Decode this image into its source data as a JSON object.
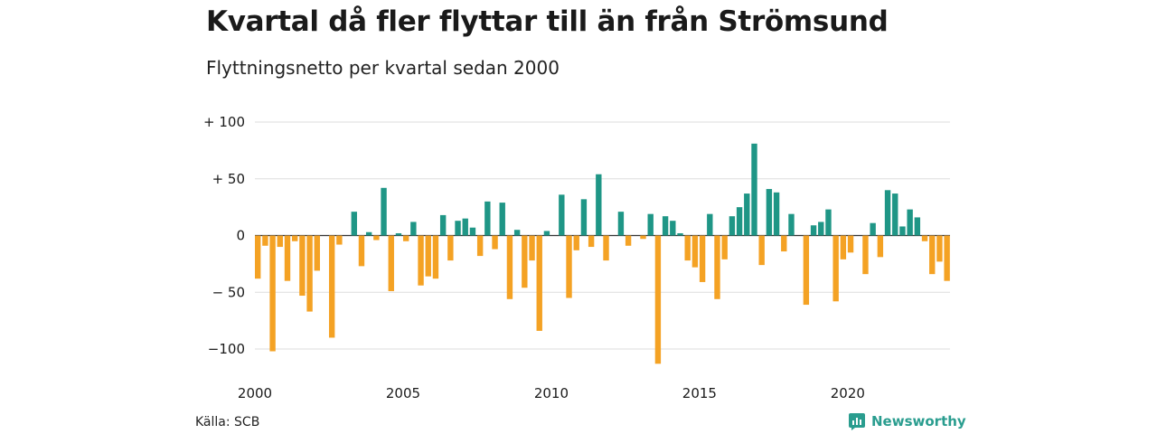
{
  "title": "Kvartal då fler flyttar till än från Strömsund",
  "subtitle": "Flyttningsnetto per kvartal sedan 2000",
  "source": "Källa: SCB",
  "brand": "Newsworthy",
  "colors": {
    "positive": "#1f9686",
    "negative": "#f4a224",
    "grid": "#dddddd",
    "brand": "#2a9d8f"
  },
  "chart_data": {
    "type": "bar",
    "title": "Kvartal då fler flyttar till än från Strömsund",
    "subtitle": "Flyttningsnetto per kvartal sedan 2000",
    "ylim": [
      -115,
      100
    ],
    "yticks": [
      100,
      50,
      0,
      -50,
      -100
    ],
    "ytick_labels": [
      "+ 100",
      "+  50",
      "0",
      "− 50",
      "−100"
    ],
    "xtick_years": [
      2000,
      2005,
      2010,
      2015,
      2020
    ],
    "xtick_labels": [
      "2000",
      "2005",
      "2010",
      "2015",
      "2020"
    ],
    "start_year": 2000,
    "grid": true,
    "values": [
      -38,
      -9,
      -102,
      -10,
      -40,
      -5,
      -53,
      -67,
      -31,
      0,
      -90,
      -8,
      0,
      21,
      -27,
      3,
      -4,
      42,
      -49,
      2,
      -5,
      12,
      -44,
      -36,
      -38,
      18,
      -22,
      13,
      15,
      7,
      -18,
      30,
      -12,
      29,
      -56,
      5,
      -46,
      -22,
      -84,
      4,
      0,
      36,
      -55,
      -13,
      32,
      -10,
      54,
      -22,
      0,
      21,
      -9,
      0,
      -3,
      19,
      -113,
      17,
      13,
      2,
      -22,
      -28,
      -41,
      19,
      -56,
      -21,
      17,
      25,
      37,
      81,
      -26,
      41,
      38,
      -14,
      19,
      0,
      -61,
      9,
      12,
      23,
      -58,
      -21,
      -15,
      0,
      -34,
      11,
      -19,
      40,
      37,
      8,
      23,
      16,
      -5,
      -34,
      -23,
      -40
    ]
  }
}
